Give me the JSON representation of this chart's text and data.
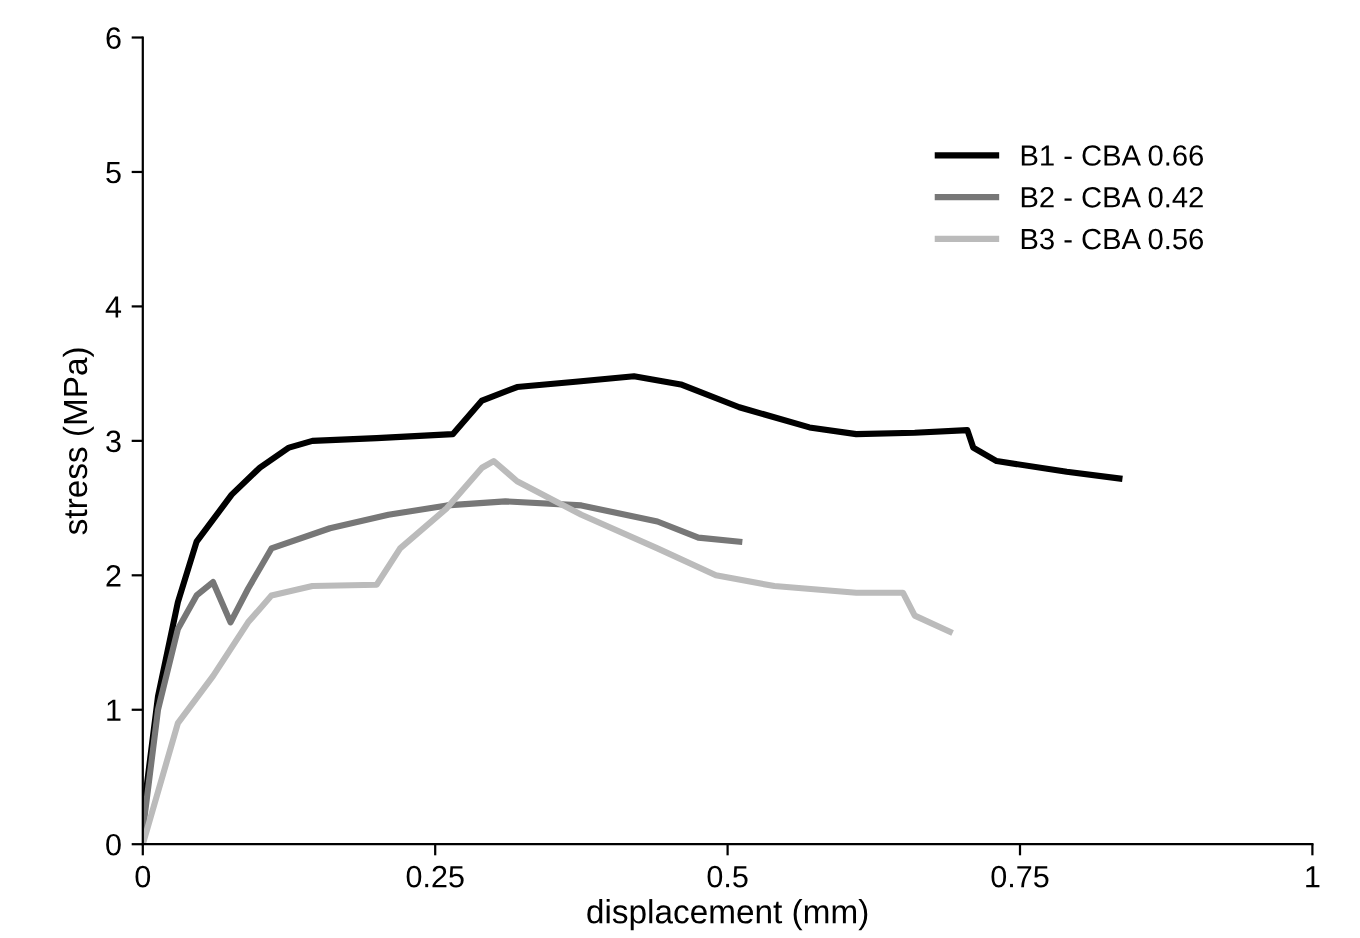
{
  "chart_data": {
    "type": "line",
    "xlabel": "displacement (mm)",
    "ylabel": "stress (MPa)",
    "xlim": [
      0,
      1
    ],
    "xticks": [
      0,
      0.25,
      0.5,
      0.75,
      1
    ],
    "ylim": [
      0,
      6
    ],
    "yticks": [
      0,
      1,
      2,
      3,
      4,
      5,
      6
    ],
    "grid": false,
    "legend": "top right",
    "line_style": "solid",
    "series": [
      {
        "name": "B1 - CBA 0.66",
        "color": "#000000",
        "x": [
          0,
          0.013,
          0.03,
          0.046,
          0.076,
          0.1,
          0.125,
          0.145,
          0.2,
          0.265,
          0.29,
          0.32,
          0.37,
          0.42,
          0.46,
          0.51,
          0.57,
          0.61,
          0.66,
          0.705,
          0.71,
          0.73,
          0.79,
          0.835
        ],
        "values": [
          0.2,
          1.1,
          1.8,
          2.25,
          2.6,
          2.8,
          2.95,
          3.0,
          3.02,
          3.05,
          3.3,
          3.4,
          3.44,
          3.48,
          3.42,
          3.25,
          3.1,
          3.05,
          3.06,
          3.08,
          2.95,
          2.85,
          2.77,
          2.72
        ]
      },
      {
        "name": "B2 - CBA 0.42",
        "color": "#777777",
        "x": [
          0,
          0.013,
          0.03,
          0.046,
          0.06,
          0.075,
          0.09,
          0.11,
          0.16,
          0.21,
          0.26,
          0.31,
          0.375,
          0.44,
          0.475,
          0.51
        ],
        "values": [
          0.1,
          1.0,
          1.6,
          1.85,
          1.95,
          1.65,
          1.9,
          2.2,
          2.35,
          2.45,
          2.52,
          2.55,
          2.52,
          2.4,
          2.28,
          2.25
        ]
      },
      {
        "name": "B3 - CBA 0.56",
        "color": "#bbbbbb",
        "x": [
          0,
          0.03,
          0.06,
          0.09,
          0.11,
          0.145,
          0.2,
          0.22,
          0.26,
          0.29,
          0.3,
          0.32,
          0.375,
          0.44,
          0.49,
          0.54,
          0.61,
          0.65,
          0.66,
          0.69
        ],
        "values": [
          0,
          0.9,
          1.25,
          1.65,
          1.85,
          1.92,
          1.93,
          2.2,
          2.5,
          2.8,
          2.85,
          2.7,
          2.45,
          2.2,
          2.0,
          1.92,
          1.87,
          1.87,
          1.7,
          1.58
        ]
      }
    ]
  }
}
